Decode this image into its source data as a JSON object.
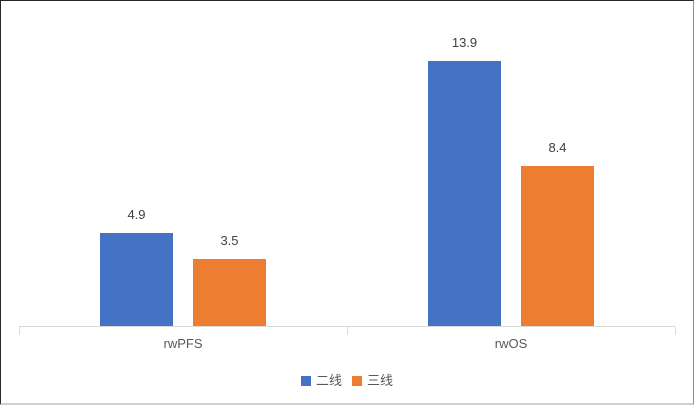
{
  "chart_data": {
    "type": "bar",
    "title": "",
    "xlabel": "",
    "ylabel": "",
    "categories": [
      "rwPFS",
      "rwOS"
    ],
    "series": [
      {
        "name": "二线",
        "color": "#4472C4",
        "values": [
          4.9,
          13.9
        ]
      },
      {
        "name": "三线",
        "color": "#ED7D31",
        "values": [
          3.5,
          8.4
        ]
      }
    ],
    "data_labels": [
      "4.9",
      "3.5",
      "13.9",
      "8.4"
    ],
    "ylim": [
      0,
      16
    ],
    "grid": false,
    "y_axis_visible": false,
    "legend_position": "bottom",
    "colors": {
      "axis": "#D9D9D9",
      "value_label": "#404040",
      "category_label": "#595959",
      "legend_label": "#595959",
      "background": "#FFFFFF"
    }
  }
}
